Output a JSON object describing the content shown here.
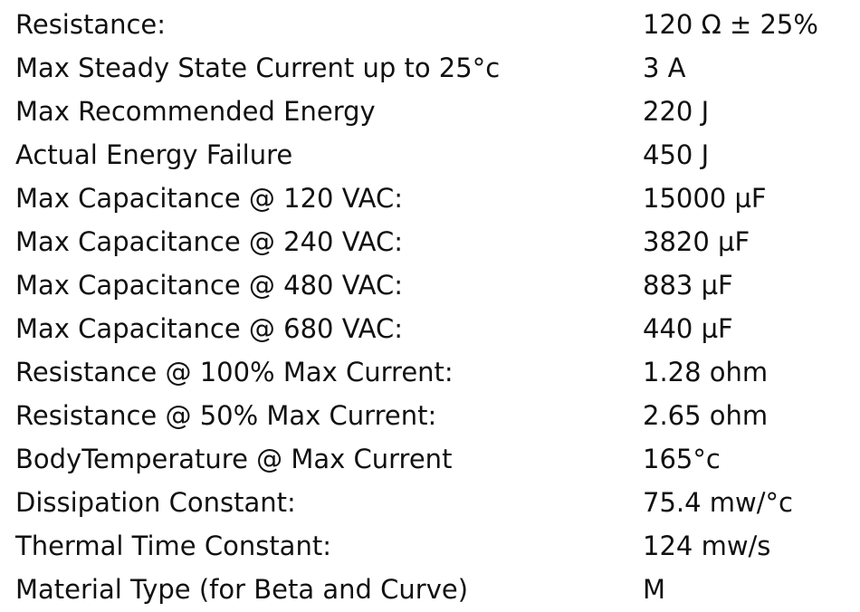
{
  "table": {
    "rows": [
      [
        "Resistance:",
        "120 Ω ± 25%"
      ],
      [
        "Max Steady State Current up to 25°c",
        "3 A"
      ],
      [
        "Max Recommended Energy",
        "220 J"
      ],
      [
        "Actual Energy Failure",
        "450 J"
      ],
      [
        "Max Capacitance @ 120 VAC:",
        "15000 µF"
      ],
      [
        "Max Capacitance @ 240 VAC:",
        "3820 µF"
      ],
      [
        "Max Capacitance @ 480 VAC:",
        "883 µF"
      ],
      [
        "Max Capacitance @ 680 VAC:",
        "440 µF"
      ],
      [
        "Resistance @ 100% Max Current:",
        "1.28 ohm"
      ],
      [
        "Resistance @ 50% Max Current:",
        "2.65 ohm"
      ],
      [
        "BodyTemperature @ Max Current",
        "165°c"
      ],
      [
        "Dissipation Constant:",
        "75.4 mw/°c"
      ],
      [
        "Thermal Time Constant:",
        "124 mw/s"
      ],
      [
        "Material Type (for Beta and Curve)",
        "M"
      ]
    ]
  }
}
